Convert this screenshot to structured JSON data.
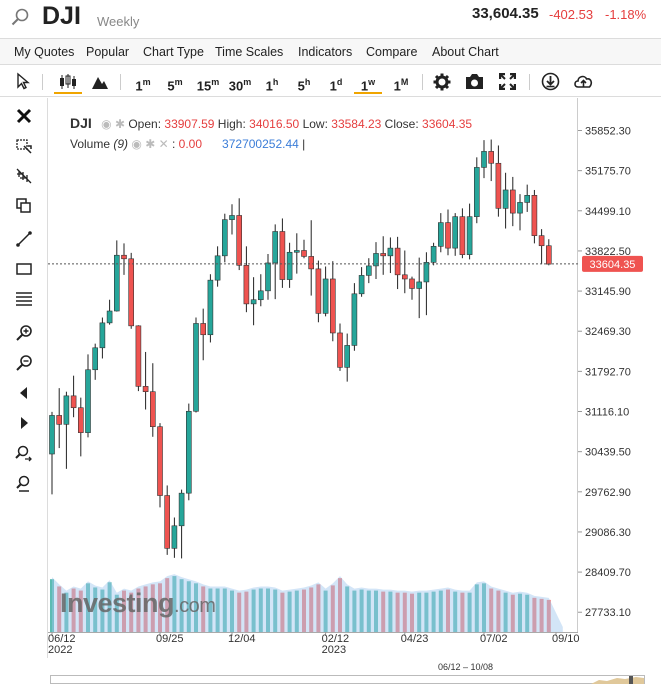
{
  "header": {
    "ticker": "DJI",
    "period": "Weekly",
    "price": "33,604.35",
    "change": "-402.53",
    "change_pct": "-1.18%"
  },
  "menu": [
    "My Quotes",
    "Popular",
    "Chart Type",
    "Time Scales",
    "Indicators",
    "Compare",
    "About Chart"
  ],
  "toolbar": {
    "timeframes": [
      "1m",
      "5m",
      "15m",
      "30m",
      "1h",
      "5h",
      "1d",
      "1w",
      "1M"
    ],
    "active": "1w"
  },
  "legend": {
    "symbol": "DJI",
    "open_label": "Open:",
    "open": "33907.59",
    "high_label": "High:",
    "high": "34016.50",
    "low_label": "Low:",
    "low": "33584.23",
    "close_label": "Close:",
    "close": "33604.35",
    "volume_label": "Volume",
    "volume_period": "(9)",
    "volume_value": "0.00",
    "volume_avg": "372700252.44"
  },
  "watermark": {
    "brand": "Investing",
    "suffix": ".com"
  },
  "colors": {
    "up": "#26a69a",
    "down": "#ef5350",
    "price_tag": "#ef5350",
    "accent": "#f0a500"
  },
  "chart_data": {
    "type": "candlestick",
    "title": "DJI",
    "interval": "Weekly",
    "y_ticks": [
      35852.3,
      35175.7,
      34499.1,
      33822.5,
      33145.9,
      32469.3,
      31792.7,
      31116.1,
      30439.5,
      29762.9,
      29086.3,
      28409.7,
      27733.1
    ],
    "ylim": [
      27400,
      36400
    ],
    "x_ticks": [
      {
        "label": "06/12",
        "sub": "2022"
      },
      {
        "label": "09/25",
        "sub": ""
      },
      {
        "label": "12/04",
        "sub": ""
      },
      {
        "label": "02/12",
        "sub": "2023"
      },
      {
        "label": "04/23",
        "sub": ""
      },
      {
        "label": "07/02",
        "sub": ""
      },
      {
        "label": "09/10",
        "sub": ""
      }
    ],
    "x_tick_index": [
      0,
      15,
      25,
      38,
      49,
      60,
      70
    ],
    "last_price": "33604.35",
    "navigator_range": "06/12 – 10/08",
    "candles": [
      [
        30400,
        31110,
        29720,
        31050
      ],
      [
        31050,
        31510,
        30500,
        30900
      ],
      [
        30900,
        31450,
        30150,
        31380
      ],
      [
        31380,
        31720,
        31020,
        31180
      ],
      [
        31180,
        31350,
        30360,
        30760
      ],
      [
        30760,
        32080,
        30680,
        31820
      ],
      [
        31820,
        32260,
        31650,
        32190
      ],
      [
        32190,
        32700,
        32010,
        32610
      ],
      [
        32610,
        33000,
        32580,
        32810
      ],
      [
        32810,
        34000,
        32800,
        33750
      ],
      [
        33750,
        33950,
        33420,
        33690
      ],
      [
        33690,
        33790,
        32510,
        32560
      ],
      [
        32560,
        32570,
        31460,
        31540
      ],
      [
        31540,
        32120,
        31150,
        31450
      ],
      [
        31450,
        31930,
        30690,
        30860
      ],
      [
        30860,
        30920,
        29500,
        29700
      ],
      [
        29700,
        29870,
        28700,
        28810
      ],
      [
        28810,
        29330,
        28650,
        29190
      ],
      [
        29190,
        29800,
        28640,
        29740
      ],
      [
        29740,
        31250,
        29620,
        31120
      ],
      [
        31120,
        32700,
        31100,
        32600
      ],
      [
        32600,
        32850,
        31980,
        32410
      ],
      [
        32410,
        33430,
        32280,
        33330
      ],
      [
        33330,
        33900,
        33220,
        33740
      ],
      [
        33740,
        34450,
        33630,
        34350
      ],
      [
        34350,
        34610,
        34100,
        34420
      ],
      [
        34420,
        34710,
        33500,
        33580
      ],
      [
        33580,
        33900,
        32790,
        32930
      ],
      [
        32930,
        33380,
        32570,
        33000
      ],
      [
        33000,
        33430,
        32890,
        33150
      ],
      [
        33150,
        33770,
        33000,
        33620
      ],
      [
        33620,
        34270,
        33010,
        34150
      ],
      [
        34150,
        34370,
        33200,
        33340
      ],
      [
        33340,
        33960,
        33200,
        33800
      ],
      [
        33800,
        34120,
        33440,
        33830
      ],
      [
        33830,
        34010,
        33700,
        33730
      ],
      [
        33730,
        34340,
        33070,
        33520
      ],
      [
        33520,
        33660,
        32620,
        32770
      ],
      [
        32770,
        33560,
        32720,
        33350
      ],
      [
        33350,
        33650,
        32300,
        32440
      ],
      [
        32440,
        32600,
        31800,
        31860
      ],
      [
        31860,
        32430,
        31620,
        32230
      ],
      [
        32230,
        33280,
        32140,
        33100
      ],
      [
        33100,
        33550,
        33050,
        33410
      ],
      [
        33410,
        33700,
        33280,
        33570
      ],
      [
        33570,
        33970,
        33350,
        33780
      ],
      [
        33780,
        34070,
        33420,
        33740
      ],
      [
        33740,
        34050,
        33450,
        33870
      ],
      [
        33870,
        34060,
        33180,
        33420
      ],
      [
        33420,
        33830,
        33110,
        33350
      ],
      [
        33350,
        33390,
        33000,
        33190
      ],
      [
        33190,
        33710,
        32690,
        33300
      ],
      [
        33300,
        33800,
        32740,
        33630
      ],
      [
        33630,
        33960,
        33580,
        33900
      ],
      [
        33900,
        34460,
        33800,
        34300
      ],
      [
        34300,
        34520,
        33750,
        33870
      ],
      [
        33870,
        34460,
        33740,
        34400
      ],
      [
        34400,
        34540,
        33700,
        33760
      ],
      [
        33760,
        34620,
        33680,
        34400
      ],
      [
        34400,
        35400,
        34290,
        35230
      ],
      [
        35230,
        35690,
        35050,
        35500
      ],
      [
        35500,
        35700,
        35000,
        35300
      ],
      [
        35300,
        35600,
        34400,
        34540
      ],
      [
        34540,
        35140,
        34200,
        34850
      ],
      [
        34850,
        35070,
        34240,
        34460
      ],
      [
        34460,
        34780,
        34170,
        34640
      ],
      [
        34640,
        34940,
        34480,
        34760
      ],
      [
        34760,
        34850,
        33950,
        34080
      ],
      [
        34080,
        34190,
        33600,
        33910
      ],
      [
        33910,
        34020,
        33580,
        33600
      ]
    ],
    "volumes": [
      510,
      440,
      380,
      420,
      400,
      470,
      430,
      410,
      480,
      360,
      400,
      380,
      420,
      440,
      460,
      470,
      520,
      540,
      510,
      490,
      470,
      440,
      420,
      420,
      420,
      400,
      380,
      390,
      410,
      420,
      420,
      410,
      380,
      390,
      400,
      410,
      430,
      460,
      400,
      450,
      520,
      440,
      400,
      410,
      400,
      400,
      390,
      390,
      380,
      380,
      370,
      380,
      380,
      390,
      400,
      410,
      390,
      380,
      380,
      460,
      470,
      420,
      400,
      380,
      360,
      370,
      360,
      330,
      320,
      310
    ]
  }
}
